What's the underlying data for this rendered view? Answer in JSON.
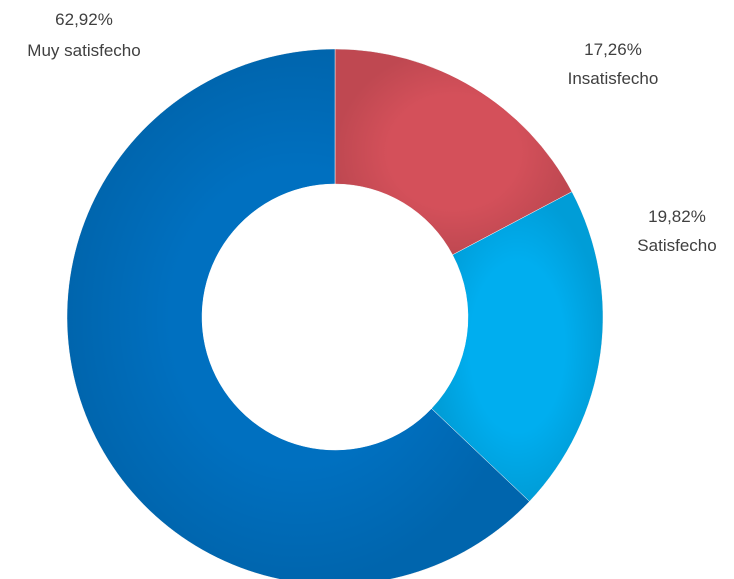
{
  "chart_data": {
    "type": "pie",
    "variant": "donut",
    "title": "",
    "legend": "none",
    "start_angle_deg": 0,
    "direction": "clockwise",
    "slices": [
      {
        "label": "Insatisfecho",
        "value": 17.26,
        "value_label": "17,26%",
        "color": "#D4505A"
      },
      {
        "label": "Satisfecho",
        "value": 19.82,
        "value_label": "19,82%",
        "color": "#00AEEF"
      },
      {
        "label": "Muy satisfecho",
        "value": 62.92,
        "value_label": "62,92%",
        "color": "#0070C0"
      }
    ]
  }
}
